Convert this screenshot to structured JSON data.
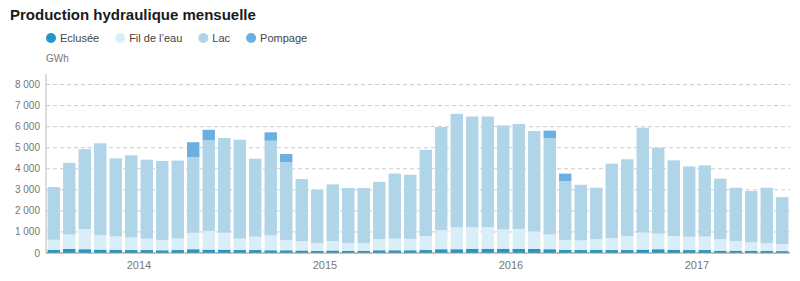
{
  "chart_data": {
    "type": "bar",
    "stacked": true,
    "title": "Production hydraulique mensuelle",
    "ylabel": "GWh",
    "grid": true,
    "legend": "top-left",
    "ylim": [
      0,
      8500
    ],
    "yticks": [
      0,
      {
        "value": 1000,
        "label": "1 000"
      },
      {
        "value": 2000,
        "label": "2 000"
      },
      {
        "value": 3000,
        "label": "3 000"
      },
      {
        "value": 4000,
        "label": "4 000"
      },
      {
        "value": 5000,
        "label": "5 000"
      },
      {
        "value": 6000,
        "label": "6 000"
      },
      {
        "value": 7000,
        "label": "7 000"
      },
      {
        "value": 8000,
        "label": "8 000"
      }
    ],
    "categories": [
      "2014",
      null,
      null,
      null,
      null,
      null,
      null,
      null,
      null,
      null,
      null,
      null,
      "2015",
      null,
      null,
      null,
      null,
      null,
      null,
      null,
      null,
      null,
      null,
      null,
      "2016",
      null,
      null,
      null,
      null,
      null,
      null,
      null,
      null,
      null,
      null,
      null,
      "2017",
      null,
      null,
      null,
      null,
      null,
      null,
      null,
      null,
      null,
      null,
      null
    ],
    "series": [
      {
        "name": "Eclusée",
        "color": "#2196c8",
        "values": [
          150,
          200,
          180,
          160,
          150,
          140,
          140,
          130,
          140,
          180,
          160,
          160,
          140,
          140,
          130,
          130,
          120,
          100,
          120,
          100,
          100,
          130,
          130,
          130,
          140,
          180,
          180,
          200,
          190,
          190,
          200,
          190,
          180,
          150,
          140,
          150,
          140,
          140,
          160,
          180,
          150,
          140,
          140,
          110,
          110,
          110,
          100,
          90
        ]
      },
      {
        "name": "Fil de l’eau",
        "color": "#daeef8",
        "values": [
          480,
          680,
          950,
          700,
          640,
          600,
          540,
          490,
          550,
          780,
          890,
          800,
          540,
          640,
          700,
          490,
          440,
          360,
          450,
          360,
          360,
          530,
          550,
          540,
          660,
          900,
          1030,
          1030,
          1040,
          930,
          940,
          830,
          700,
          470,
          460,
          510,
          560,
          670,
          810,
          740,
          660,
          630,
          640,
          540,
          460,
          400,
          360,
          340
        ]
      },
      {
        "name": "Lac",
        "color": "#b0d4e8",
        "values": [
          2500,
          3400,
          3800,
          4350,
          3700,
          3900,
          3750,
          3750,
          3700,
          3600,
          4300,
          4500,
          4700,
          3700,
          4500,
          3700,
          2950,
          2550,
          2690,
          2630,
          2630,
          2720,
          3090,
          3040,
          4100,
          4900,
          5400,
          5250,
          5250,
          4940,
          4990,
          4770,
          4580,
          2800,
          2640,
          2440,
          3540,
          3640,
          4980,
          4080,
          3590,
          3340,
          3380,
          2880,
          2530,
          2440,
          2640,
          2220
        ]
      },
      {
        "name": "Pompage",
        "color": "#6aafe0",
        "values": [
          0,
          0,
          0,
          0,
          0,
          0,
          0,
          0,
          0,
          700,
          500,
          0,
          0,
          0,
          400,
          380,
          0,
          0,
          0,
          0,
          0,
          0,
          0,
          0,
          0,
          0,
          0,
          0,
          0,
          0,
          0,
          0,
          350,
          350,
          0,
          0,
          0,
          0,
          0,
          0,
          0,
          0,
          0,
          0,
          0,
          0,
          0,
          0
        ]
      }
    ]
  }
}
